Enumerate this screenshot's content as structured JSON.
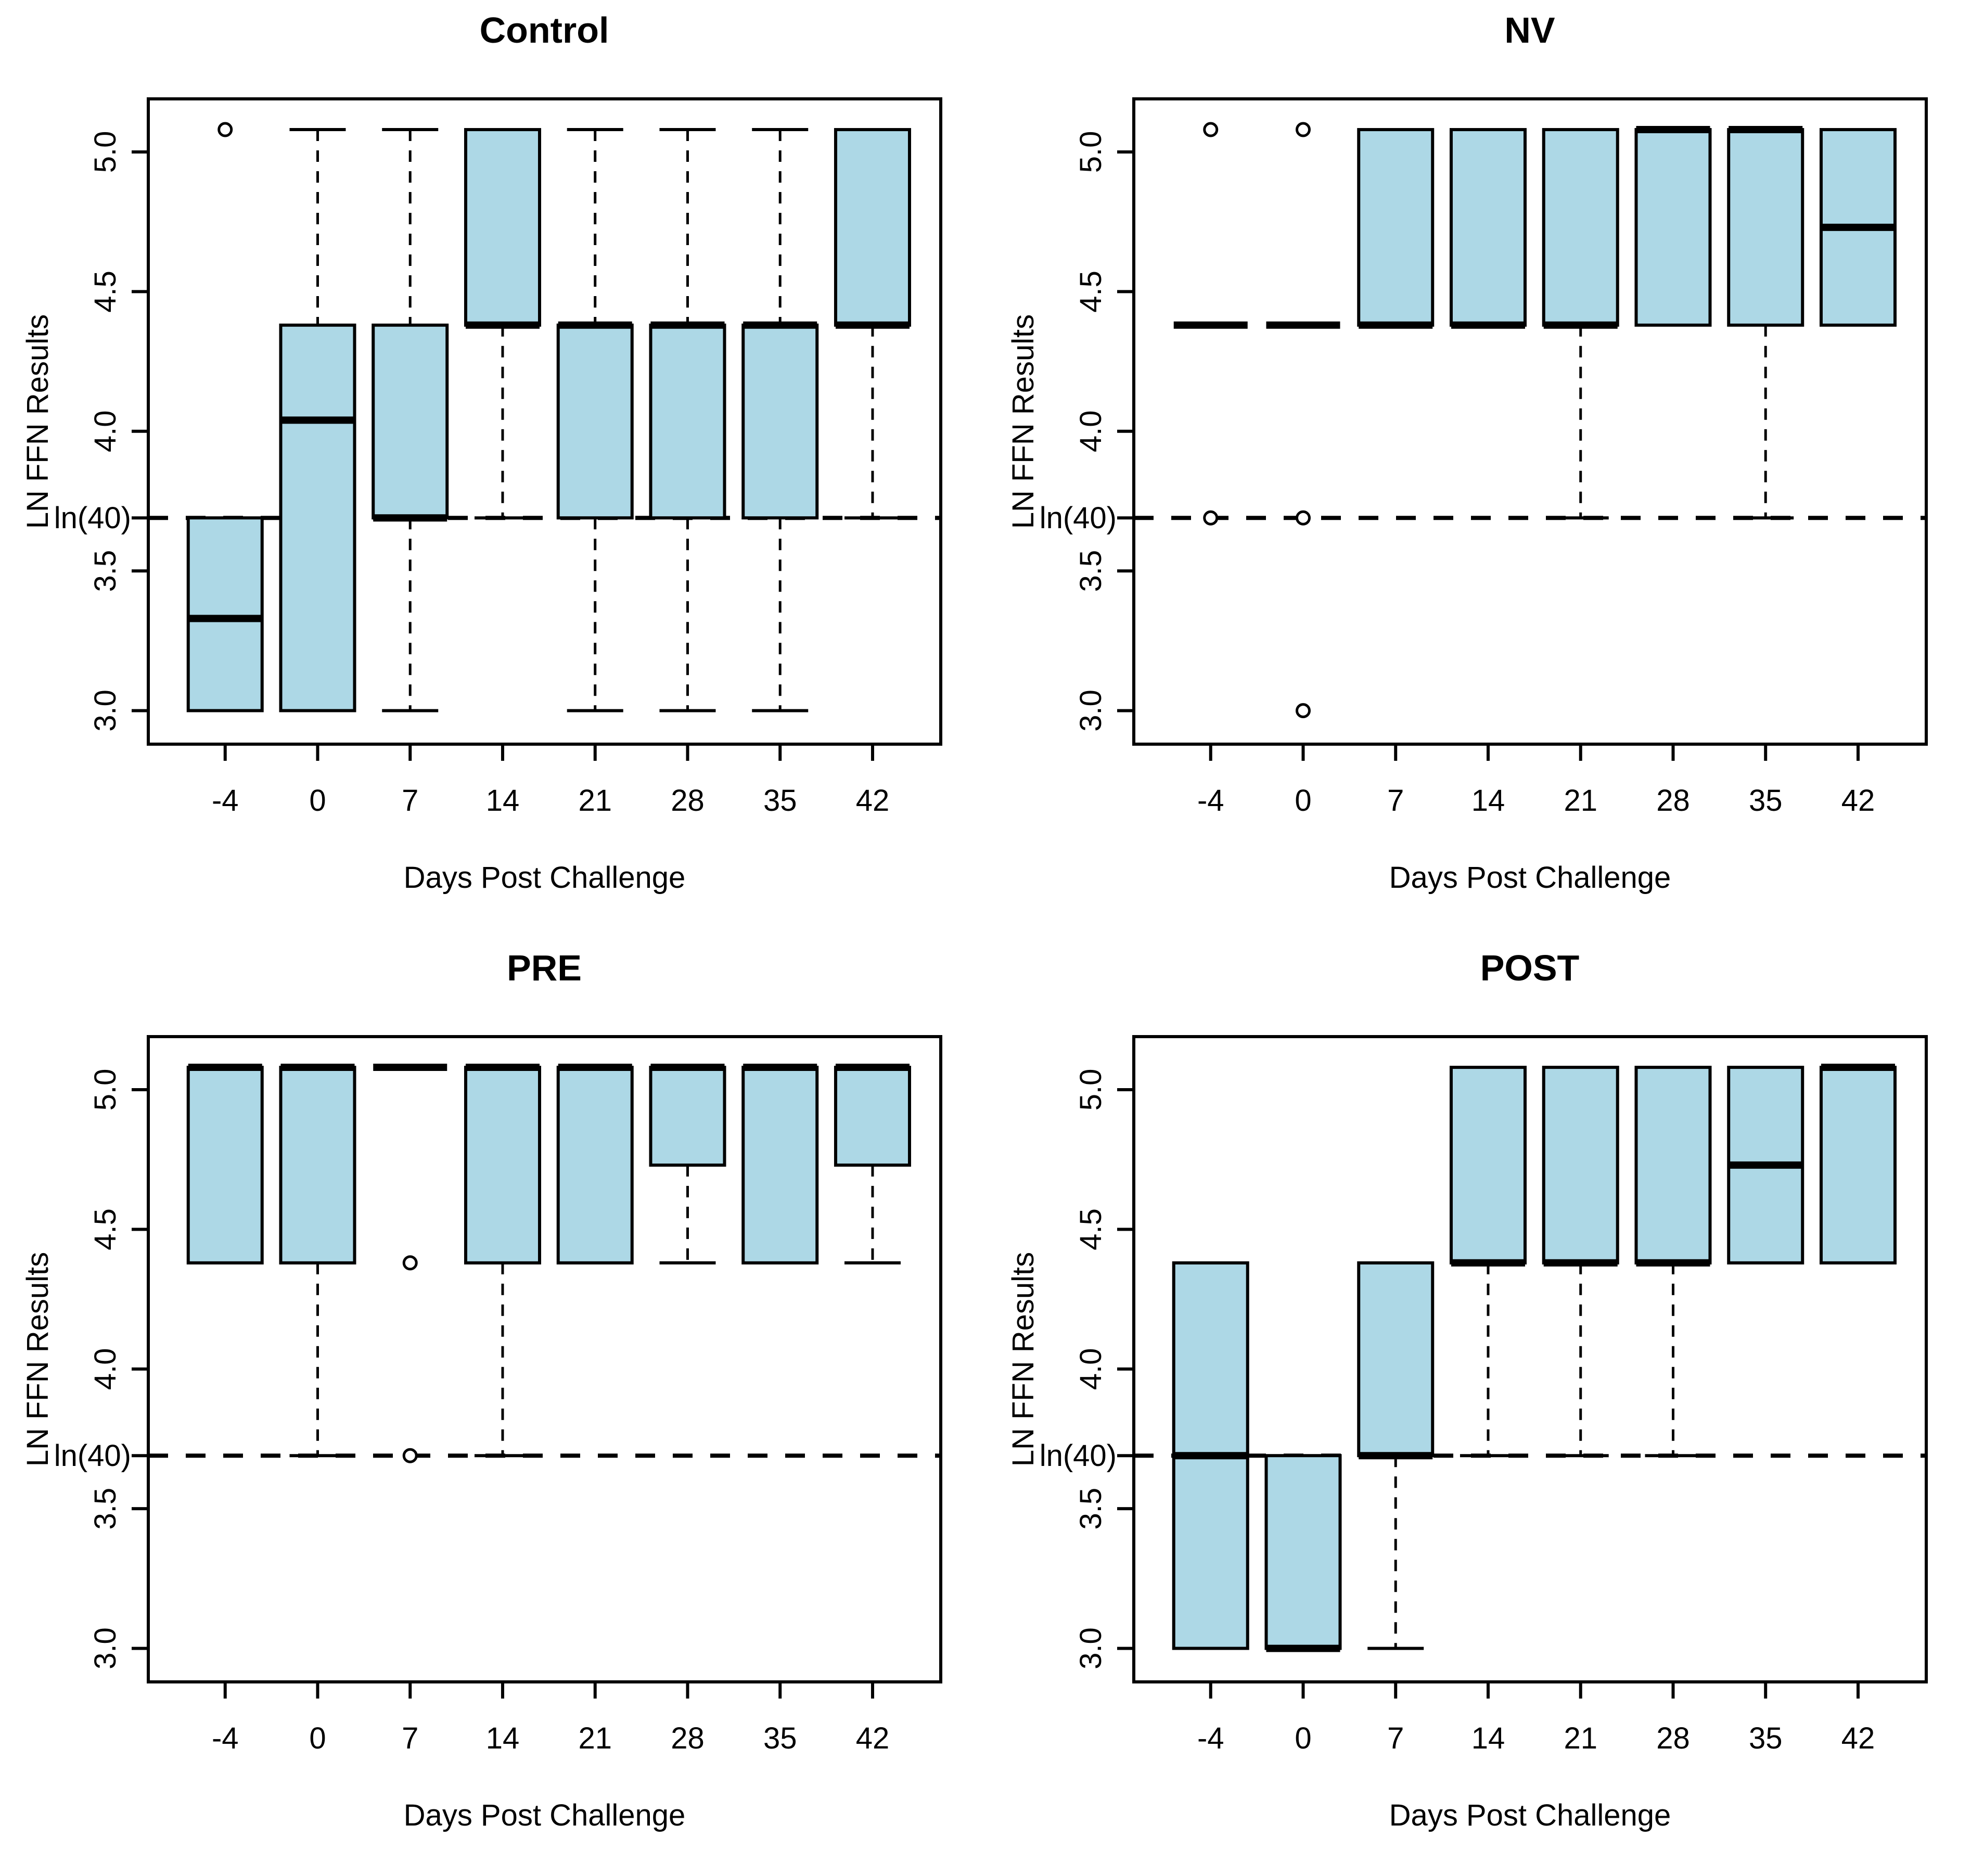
{
  "figure": {
    "background": "#FFFFFF",
    "rows": 2,
    "cols": 2
  },
  "style": {
    "box_fill": "#ADD8E6",
    "line_color": "#000000",
    "text_color": "#000000"
  },
  "chart_data": [
    {
      "type": "boxplot",
      "title": "Control",
      "xlabel": "Days Post Challenge",
      "ylabel": "LN FFN Results",
      "categories": [
        "-4",
        "0",
        "7",
        "14",
        "21",
        "28",
        "35",
        "42"
      ],
      "ylim": [
        2.88,
        5.19
      ],
      "grid": false,
      "legend": "none",
      "yticks": [
        {
          "value": 3.0,
          "label": "3.0",
          "rotated": true
        },
        {
          "value": 3.5,
          "label": "3.5",
          "rotated": true
        },
        {
          "value": 3.69,
          "label": "ln(40)",
          "rotated": false
        },
        {
          "value": 4.0,
          "label": "4.0",
          "rotated": true
        },
        {
          "value": 4.5,
          "label": "4.5",
          "rotated": true
        },
        {
          "value": 5.0,
          "label": "5.0",
          "rotated": true
        }
      ],
      "reference_line": {
        "value": 3.69,
        "style": "dashed"
      },
      "boxes": [
        {
          "category": "-4",
          "q1": 3.0,
          "median": 3.33,
          "q3": 3.69,
          "whisker_low": 3.0,
          "whisker_high": 3.69,
          "outliers": [
            5.08
          ]
        },
        {
          "category": "0",
          "q1": 3.0,
          "median": 4.04,
          "q3": 4.38,
          "whisker_low": 3.0,
          "whisker_high": 5.08,
          "outliers": []
        },
        {
          "category": "7",
          "q1": 3.69,
          "median": 3.69,
          "q3": 4.38,
          "whisker_low": 3.0,
          "whisker_high": 5.08,
          "outliers": []
        },
        {
          "category": "14",
          "q1": 4.38,
          "median": 4.38,
          "q3": 5.08,
          "whisker_low": 3.69,
          "whisker_high": 5.08,
          "outliers": []
        },
        {
          "category": "21",
          "q1": 3.69,
          "median": 4.38,
          "q3": 4.38,
          "whisker_low": 3.0,
          "whisker_high": 5.08,
          "outliers": []
        },
        {
          "category": "28",
          "q1": 3.69,
          "median": 4.38,
          "q3": 4.38,
          "whisker_low": 3.0,
          "whisker_high": 5.08,
          "outliers": []
        },
        {
          "category": "35",
          "q1": 3.69,
          "median": 4.38,
          "q3": 4.38,
          "whisker_low": 3.0,
          "whisker_high": 5.08,
          "outliers": []
        },
        {
          "category": "42",
          "q1": 4.38,
          "median": 4.38,
          "q3": 5.08,
          "whisker_low": 3.69,
          "whisker_high": 5.08,
          "outliers": []
        }
      ]
    },
    {
      "type": "boxplot",
      "title": "NV",
      "xlabel": "Days Post Challenge",
      "ylabel": "LN FFN Results",
      "categories": [
        "-4",
        "0",
        "7",
        "14",
        "21",
        "28",
        "35",
        "42"
      ],
      "ylim": [
        2.88,
        5.19
      ],
      "grid": false,
      "legend": "none",
      "yticks": [
        {
          "value": 3.0,
          "label": "3.0",
          "rotated": true
        },
        {
          "value": 3.5,
          "label": "3.5",
          "rotated": true
        },
        {
          "value": 3.69,
          "label": "ln(40)",
          "rotated": false
        },
        {
          "value": 4.0,
          "label": "4.0",
          "rotated": true
        },
        {
          "value": 4.5,
          "label": "4.5",
          "rotated": true
        },
        {
          "value": 5.0,
          "label": "5.0",
          "rotated": true
        }
      ],
      "reference_line": {
        "value": 3.69,
        "style": "dashed"
      },
      "boxes": [
        {
          "category": "-4",
          "q1": 4.38,
          "median": 4.38,
          "q3": 4.38,
          "whisker_low": 4.38,
          "whisker_high": 4.38,
          "outliers": [
            5.08,
            3.69
          ]
        },
        {
          "category": "0",
          "q1": 4.38,
          "median": 4.38,
          "q3": 4.38,
          "whisker_low": 4.38,
          "whisker_high": 4.38,
          "outliers": [
            5.08,
            3.69,
            3.0
          ]
        },
        {
          "category": "7",
          "q1": 4.38,
          "median": 4.38,
          "q3": 5.08,
          "whisker_low": 4.38,
          "whisker_high": 5.08,
          "outliers": []
        },
        {
          "category": "14",
          "q1": 4.38,
          "median": 4.38,
          "q3": 5.08,
          "whisker_low": 4.38,
          "whisker_high": 5.08,
          "outliers": []
        },
        {
          "category": "21",
          "q1": 4.38,
          "median": 4.38,
          "q3": 5.08,
          "whisker_low": 3.69,
          "whisker_high": 5.08,
          "outliers": []
        },
        {
          "category": "28",
          "q1": 4.38,
          "median": 5.08,
          "q3": 5.08,
          "whisker_low": 4.38,
          "whisker_high": 5.08,
          "outliers": []
        },
        {
          "category": "35",
          "q1": 4.38,
          "median": 5.08,
          "q3": 5.08,
          "whisker_low": 3.69,
          "whisker_high": 5.08,
          "outliers": []
        },
        {
          "category": "42",
          "q1": 4.38,
          "median": 4.73,
          "q3": 5.08,
          "whisker_low": 4.38,
          "whisker_high": 5.08,
          "outliers": []
        }
      ]
    },
    {
      "type": "boxplot",
      "title": "PRE",
      "xlabel": "Days Post Challenge",
      "ylabel": "LN FFN Results",
      "categories": [
        "-4",
        "0",
        "7",
        "14",
        "21",
        "28",
        "35",
        "42"
      ],
      "ylim": [
        2.88,
        5.19
      ],
      "grid": false,
      "legend": "none",
      "yticks": [
        {
          "value": 3.0,
          "label": "3.0",
          "rotated": true
        },
        {
          "value": 3.5,
          "label": "3.5",
          "rotated": true
        },
        {
          "value": 3.69,
          "label": "ln(40)",
          "rotated": false
        },
        {
          "value": 4.0,
          "label": "4.0",
          "rotated": true
        },
        {
          "value": 4.5,
          "label": "4.5",
          "rotated": true
        },
        {
          "value": 5.0,
          "label": "5.0",
          "rotated": true
        }
      ],
      "reference_line": {
        "value": 3.69,
        "style": "dashed"
      },
      "boxes": [
        {
          "category": "-4",
          "q1": 4.38,
          "median": 5.08,
          "q3": 5.08,
          "whisker_low": 4.38,
          "whisker_high": 5.08,
          "outliers": []
        },
        {
          "category": "0",
          "q1": 4.38,
          "median": 5.08,
          "q3": 5.08,
          "whisker_low": 3.69,
          "whisker_high": 5.08,
          "outliers": []
        },
        {
          "category": "7",
          "q1": 5.08,
          "median": 5.08,
          "q3": 5.08,
          "whisker_low": 5.08,
          "whisker_high": 5.08,
          "outliers": [
            4.38,
            3.69
          ]
        },
        {
          "category": "14",
          "q1": 4.38,
          "median": 5.08,
          "q3": 5.08,
          "whisker_low": 3.69,
          "whisker_high": 5.08,
          "outliers": []
        },
        {
          "category": "21",
          "q1": 4.38,
          "median": 5.08,
          "q3": 5.08,
          "whisker_low": 4.38,
          "whisker_high": 5.08,
          "outliers": []
        },
        {
          "category": "28",
          "q1": 4.73,
          "median": 5.08,
          "q3": 5.08,
          "whisker_low": 4.38,
          "whisker_high": 5.08,
          "outliers": []
        },
        {
          "category": "35",
          "q1": 4.38,
          "median": 5.08,
          "q3": 5.08,
          "whisker_low": 4.38,
          "whisker_high": 5.08,
          "outliers": []
        },
        {
          "category": "42",
          "q1": 4.73,
          "median": 5.08,
          "q3": 5.08,
          "whisker_low": 4.38,
          "whisker_high": 5.08,
          "outliers": []
        }
      ]
    },
    {
      "type": "boxplot",
      "title": "POST",
      "xlabel": "Days Post Challenge",
      "ylabel": "LN FFN Results",
      "categories": [
        "-4",
        "0",
        "7",
        "14",
        "21",
        "28",
        "35",
        "42"
      ],
      "ylim": [
        2.88,
        5.19
      ],
      "grid": false,
      "legend": "none",
      "yticks": [
        {
          "value": 3.0,
          "label": "3.0",
          "rotated": true
        },
        {
          "value": 3.5,
          "label": "3.5",
          "rotated": true
        },
        {
          "value": 3.69,
          "label": "ln(40)",
          "rotated": false
        },
        {
          "value": 4.0,
          "label": "4.0",
          "rotated": true
        },
        {
          "value": 4.5,
          "label": "4.5",
          "rotated": true
        },
        {
          "value": 5.0,
          "label": "5.0",
          "rotated": true
        }
      ],
      "reference_line": {
        "value": 3.69,
        "style": "dashed"
      },
      "boxes": [
        {
          "category": "-4",
          "q1": 3.0,
          "median": 3.69,
          "q3": 4.38,
          "whisker_low": 3.0,
          "whisker_high": 4.38,
          "outliers": []
        },
        {
          "category": "0",
          "q1": 3.0,
          "median": 3.0,
          "q3": 3.69,
          "whisker_low": 3.0,
          "whisker_high": 3.69,
          "outliers": []
        },
        {
          "category": "7",
          "q1": 3.69,
          "median": 3.69,
          "q3": 4.38,
          "whisker_low": 3.0,
          "whisker_high": 4.38,
          "outliers": []
        },
        {
          "category": "14",
          "q1": 4.38,
          "median": 4.38,
          "q3": 5.08,
          "whisker_low": 3.69,
          "whisker_high": 5.08,
          "outliers": []
        },
        {
          "category": "21",
          "q1": 4.38,
          "median": 4.38,
          "q3": 5.08,
          "whisker_low": 3.69,
          "whisker_high": 5.08,
          "outliers": []
        },
        {
          "category": "28",
          "q1": 4.38,
          "median": 4.38,
          "q3": 5.08,
          "whisker_low": 3.69,
          "whisker_high": 5.08,
          "outliers": []
        },
        {
          "category": "35",
          "q1": 4.38,
          "median": 4.73,
          "q3": 5.08,
          "whisker_low": 4.38,
          "whisker_high": 5.08,
          "outliers": []
        },
        {
          "category": "42",
          "q1": 4.38,
          "median": 5.08,
          "q3": 5.08,
          "whisker_low": 4.38,
          "whisker_high": 5.08,
          "outliers": []
        }
      ]
    }
  ]
}
